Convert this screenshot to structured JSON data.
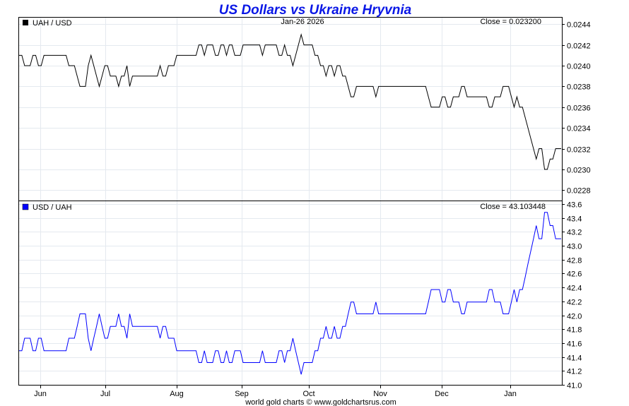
{
  "chart_data": [
    {
      "type": "line",
      "title": "US Dollars vs Ukraine Hryvnia",
      "date_label": "Jan-26  2026",
      "series_label": "UAH / USD",
      "close_label": "Close = 0.023200",
      "color": "#000000",
      "ylim": [
        0.0227,
        0.02447
      ],
      "yticks": [
        "0.0228",
        "0.0230",
        "0.0232",
        "0.0234",
        "0.0236",
        "0.0238",
        "0.0240",
        "0.0242",
        "0.0244"
      ],
      "values": [
        0.0241,
        0.0241,
        0.024,
        0.024,
        0.024,
        0.0241,
        0.0241,
        0.024,
        0.024,
        0.0241,
        0.0241,
        0.0241,
        0.0241,
        0.0241,
        0.0241,
        0.0241,
        0.0241,
        0.0241,
        0.024,
        0.024,
        0.024,
        0.0239,
        0.0238,
        0.0238,
        0.0238,
        0.024,
        0.0241,
        0.024,
        0.0239,
        0.0238,
        0.0239,
        0.024,
        0.024,
        0.0239,
        0.0239,
        0.0239,
        0.0238,
        0.0239,
        0.0239,
        0.024,
        0.0238,
        0.0239,
        0.0239,
        0.0239,
        0.0239,
        0.0239,
        0.0239,
        0.0239,
        0.0239,
        0.0239,
        0.0239,
        0.024,
        0.0239,
        0.0239,
        0.024,
        0.024,
        0.024,
        0.0241,
        0.0241,
        0.0241,
        0.0241,
        0.0241,
        0.0241,
        0.0241,
        0.0241,
        0.0242,
        0.0242,
        0.0241,
        0.0242,
        0.0242,
        0.0242,
        0.0241,
        0.0241,
        0.0242,
        0.0242,
        0.0241,
        0.0242,
        0.0242,
        0.0241,
        0.0241,
        0.0241,
        0.0242,
        0.0242,
        0.0242,
        0.0242,
        0.0242,
        0.0242,
        0.0242,
        0.0241,
        0.0242,
        0.0242,
        0.0242,
        0.0242,
        0.0242,
        0.0241,
        0.0241,
        0.0242,
        0.0241,
        0.0241,
        0.024,
        0.0241,
        0.0242,
        0.0243,
        0.0242,
        0.0242,
        0.0242,
        0.0242,
        0.0241,
        0.0241,
        0.024,
        0.024,
        0.0239,
        0.024,
        0.024,
        0.0239,
        0.024,
        0.024,
        0.0239,
        0.0239,
        0.0238,
        0.0237,
        0.0237,
        0.0238,
        0.0238,
        0.0238,
        0.0238,
        0.0238,
        0.0238,
        0.0238,
        0.0237,
        0.0238,
        0.0238,
        0.0238,
        0.0238,
        0.0238,
        0.0238,
        0.0238,
        0.0238,
        0.0238,
        0.0238,
        0.0238,
        0.0238,
        0.0238,
        0.0238,
        0.0238,
        0.0238,
        0.0238,
        0.0238,
        0.0237,
        0.0236,
        0.0236,
        0.0236,
        0.0236,
        0.0237,
        0.0237,
        0.0236,
        0.0236,
        0.0237,
        0.0237,
        0.0237,
        0.0238,
        0.0238,
        0.0237,
        0.0237,
        0.0237,
        0.0237,
        0.0237,
        0.0237,
        0.0237,
        0.0237,
        0.0236,
        0.0236,
        0.0237,
        0.0237,
        0.0237,
        0.0238,
        0.0238,
        0.0238,
        0.0237,
        0.0236,
        0.0237,
        0.0236,
        0.0236,
        0.0235,
        0.0234,
        0.0233,
        0.0232,
        0.0231,
        0.0232,
        0.0232,
        0.023,
        0.023,
        0.0231,
        0.0231,
        0.0232,
        0.0232,
        0.0232
      ],
      "close": 0.0232
    },
    {
      "type": "line",
      "series_label": "USD / UAH",
      "close_label": "Close = 43.103448",
      "color": "#0000ff",
      "ylim": [
        41.0,
        43.65
      ],
      "yticks": [
        "41.0",
        "41.2",
        "41.4",
        "41.6",
        "41.8",
        "42.0",
        "42.2",
        "42.4",
        "42.6",
        "42.8",
        "43.0",
        "43.2",
        "43.4",
        "43.6"
      ],
      "values": [
        41.49,
        41.49,
        41.67,
        41.67,
        41.67,
        41.49,
        41.49,
        41.67,
        41.67,
        41.49,
        41.49,
        41.49,
        41.49,
        41.49,
        41.49,
        41.49,
        41.49,
        41.49,
        41.67,
        41.67,
        41.67,
        41.84,
        42.02,
        42.02,
        42.02,
        41.67,
        41.49,
        41.67,
        41.84,
        42.02,
        41.84,
        41.67,
        41.67,
        41.84,
        41.84,
        41.84,
        42.02,
        41.84,
        41.84,
        41.67,
        42.02,
        41.84,
        41.84,
        41.84,
        41.84,
        41.84,
        41.84,
        41.84,
        41.84,
        41.84,
        41.84,
        41.67,
        41.84,
        41.84,
        41.67,
        41.67,
        41.67,
        41.49,
        41.49,
        41.49,
        41.49,
        41.49,
        41.49,
        41.49,
        41.49,
        41.32,
        41.32,
        41.49,
        41.32,
        41.32,
        41.32,
        41.49,
        41.49,
        41.32,
        41.32,
        41.49,
        41.32,
        41.32,
        41.49,
        41.49,
        41.49,
        41.32,
        41.32,
        41.32,
        41.32,
        41.32,
        41.32,
        41.32,
        41.49,
        41.32,
        41.32,
        41.32,
        41.32,
        41.32,
        41.49,
        41.49,
        41.32,
        41.49,
        41.49,
        41.67,
        41.49,
        41.32,
        41.15,
        41.32,
        41.32,
        41.32,
        41.32,
        41.49,
        41.49,
        41.67,
        41.67,
        41.84,
        41.67,
        41.67,
        41.84,
        41.67,
        41.67,
        41.84,
        41.84,
        42.02,
        42.19,
        42.19,
        42.02,
        42.02,
        42.02,
        42.02,
        42.02,
        42.02,
        42.02,
        42.19,
        42.02,
        42.02,
        42.02,
        42.02,
        42.02,
        42.02,
        42.02,
        42.02,
        42.02,
        42.02,
        42.02,
        42.02,
        42.02,
        42.02,
        42.02,
        42.02,
        42.02,
        42.02,
        42.19,
        42.37,
        42.37,
        42.37,
        42.37,
        42.19,
        42.19,
        42.37,
        42.37,
        42.19,
        42.19,
        42.19,
        42.02,
        42.02,
        42.19,
        42.19,
        42.19,
        42.19,
        42.19,
        42.19,
        42.19,
        42.19,
        42.37,
        42.37,
        42.19,
        42.19,
        42.19,
        42.02,
        42.02,
        42.02,
        42.19,
        42.37,
        42.19,
        42.37,
        42.37,
        42.55,
        42.74,
        42.92,
        43.1,
        43.29,
        43.1,
        43.1,
        43.48,
        43.48,
        43.29,
        43.29,
        43.1,
        43.1,
        43.1
      ],
      "close": 43.103448
    }
  ],
  "x_axis": {
    "months": [
      "Jun",
      "Jul",
      "Aug",
      "Sep",
      "Oct",
      "Nov",
      "Dec",
      "Jan"
    ]
  },
  "footer": "world gold charts © www.goldchartsrus.com"
}
